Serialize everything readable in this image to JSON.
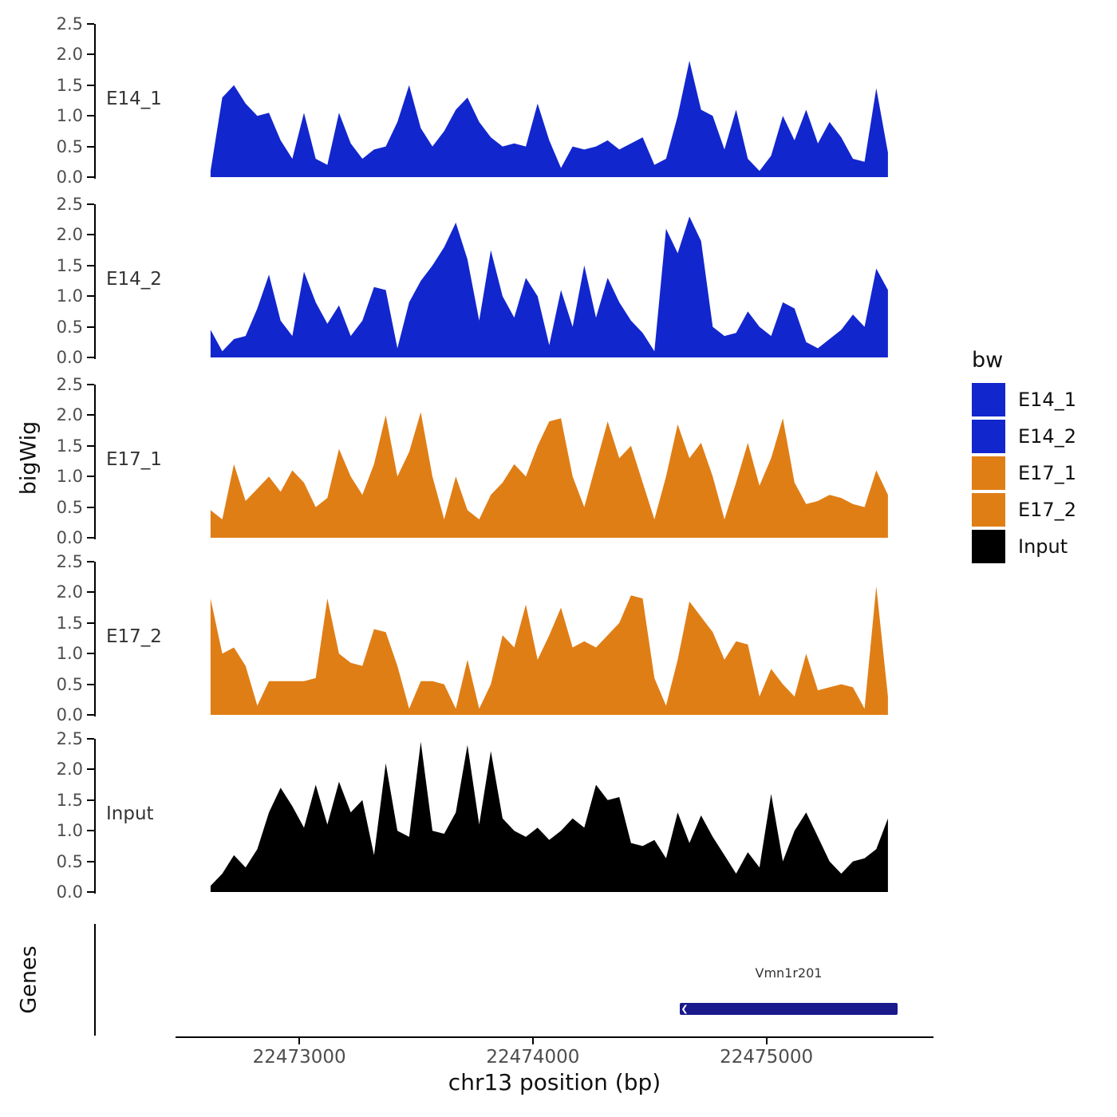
{
  "figure": {
    "y_axis_title": "bigWig",
    "x_axis_title": "chr13 position (bp)",
    "genes_title": "Genes"
  },
  "legend": {
    "title": "bw",
    "entries": [
      {
        "label": "E14_1",
        "color": "#1226CE"
      },
      {
        "label": "E14_2",
        "color": "#1226CE"
      },
      {
        "label": "E17_1",
        "color": "#E07E16"
      },
      {
        "label": "E17_2",
        "color": "#E07E16"
      },
      {
        "label": "Input",
        "color": "#000000"
      }
    ]
  },
  "chart_data": {
    "type": "area",
    "title": "",
    "xlabel": "chr13 position (bp)",
    "ylabel": "bigWig",
    "legend_title": "bw",
    "legend_position": "right",
    "grid": false,
    "xlim": [
      22472470,
      22475715
    ],
    "ylim": [
      0,
      2.5
    ],
    "yticks": [
      0,
      0.5,
      1,
      1.5,
      2,
      2.5
    ],
    "xticks": [
      22473000,
      22474000,
      22475000
    ],
    "x_start": 22472620,
    "x_step": 50,
    "series": [
      {
        "name": "E14_1",
        "color": "#1226CE",
        "values": [
          0.1,
          1.3,
          1.5,
          1.2,
          1.0,
          1.05,
          0.6,
          0.3,
          1.05,
          0.3,
          0.2,
          1.05,
          0.55,
          0.3,
          0.45,
          0.5,
          0.9,
          1.5,
          0.8,
          0.5,
          0.75,
          1.1,
          1.3,
          0.9,
          0.65,
          0.5,
          0.55,
          0.5,
          1.2,
          0.6,
          0.15,
          0.5,
          0.45,
          0.5,
          0.6,
          0.45,
          0.55,
          0.65,
          0.2,
          0.3,
          1.0,
          1.9,
          1.1,
          1.0,
          0.45,
          1.1,
          0.3,
          0.1,
          0.35,
          1.0,
          0.6,
          1.1,
          0.55,
          0.9,
          0.65,
          0.3,
          0.25,
          1.45,
          0.4
        ]
      },
      {
        "name": "E14_2",
        "color": "#1226CE",
        "values": [
          0.45,
          0.1,
          0.3,
          0.35,
          0.8,
          1.35,
          0.6,
          0.35,
          1.4,
          0.9,
          0.55,
          0.85,
          0.35,
          0.6,
          1.15,
          1.1,
          0.15,
          0.9,
          1.25,
          1.5,
          1.8,
          2.2,
          1.6,
          0.6,
          1.75,
          1.0,
          0.65,
          1.3,
          1.0,
          0.2,
          1.1,
          0.5,
          1.5,
          0.65,
          1.3,
          0.9,
          0.6,
          0.4,
          0.1,
          2.1,
          1.7,
          2.3,
          1.9,
          0.5,
          0.35,
          0.4,
          0.75,
          0.5,
          0.35,
          0.9,
          0.8,
          0.25,
          0.15,
          0.3,
          0.45,
          0.7,
          0.5,
          1.45,
          1.1
        ]
      },
      {
        "name": "E17_1",
        "color": "#E07E16",
        "values": [
          0.45,
          0.3,
          1.2,
          0.6,
          0.8,
          1.0,
          0.75,
          1.1,
          0.9,
          0.5,
          0.65,
          1.45,
          1.0,
          0.7,
          1.2,
          2.0,
          1.0,
          1.4,
          2.05,
          1.0,
          0.3,
          1.0,
          0.45,
          0.3,
          0.7,
          0.9,
          1.2,
          1.0,
          1.5,
          1.9,
          1.95,
          1.0,
          0.5,
          1.2,
          1.9,
          1.3,
          1.5,
          0.9,
          0.3,
          1.0,
          1.85,
          1.3,
          1.55,
          1.0,
          0.3,
          0.9,
          1.55,
          0.85,
          1.3,
          1.95,
          0.9,
          0.55,
          0.6,
          0.7,
          0.65,
          0.55,
          0.5,
          1.1,
          0.7
        ]
      },
      {
        "name": "E17_2",
        "color": "#E07E16",
        "values": [
          1.9,
          1.0,
          1.1,
          0.8,
          0.15,
          0.55,
          0.55,
          0.55,
          0.55,
          0.6,
          1.9,
          1.0,
          0.85,
          0.8,
          1.4,
          1.35,
          0.8,
          0.1,
          0.55,
          0.55,
          0.5,
          0.1,
          0.9,
          0.1,
          0.5,
          1.3,
          1.1,
          1.8,
          0.9,
          1.3,
          1.75,
          1.1,
          1.2,
          1.1,
          1.3,
          1.5,
          1.95,
          1.9,
          0.6,
          0.15,
          0.9,
          1.85,
          1.6,
          1.35,
          0.9,
          1.2,
          1.15,
          0.3,
          0.75,
          0.5,
          0.3,
          1.0,
          0.4,
          0.45,
          0.5,
          0.45,
          0.1,
          2.1,
          0.3
        ]
      },
      {
        "name": "Input",
        "color": "#000000",
        "values": [
          0.1,
          0.3,
          0.6,
          0.4,
          0.7,
          1.3,
          1.7,
          1.4,
          1.05,
          1.75,
          1.1,
          1.8,
          1.3,
          1.5,
          0.6,
          2.1,
          1.0,
          0.9,
          2.45,
          1.0,
          0.95,
          1.3,
          2.4,
          1.1,
          2.3,
          1.2,
          1.0,
          0.9,
          1.05,
          0.85,
          1.0,
          1.2,
          1.05,
          1.75,
          1.5,
          1.55,
          0.8,
          0.75,
          0.85,
          0.55,
          1.3,
          0.8,
          1.25,
          0.9,
          0.6,
          0.3,
          0.65,
          0.4,
          1.6,
          0.5,
          1.0,
          1.3,
          0.9,
          0.5,
          0.3,
          0.5,
          0.55,
          0.7,
          1.2
        ]
      }
    ],
    "gene": {
      "name": "Vmn1r201",
      "start": 22474630,
      "end": 22475560,
      "strand": "-",
      "color": "#1A1A8C"
    }
  }
}
